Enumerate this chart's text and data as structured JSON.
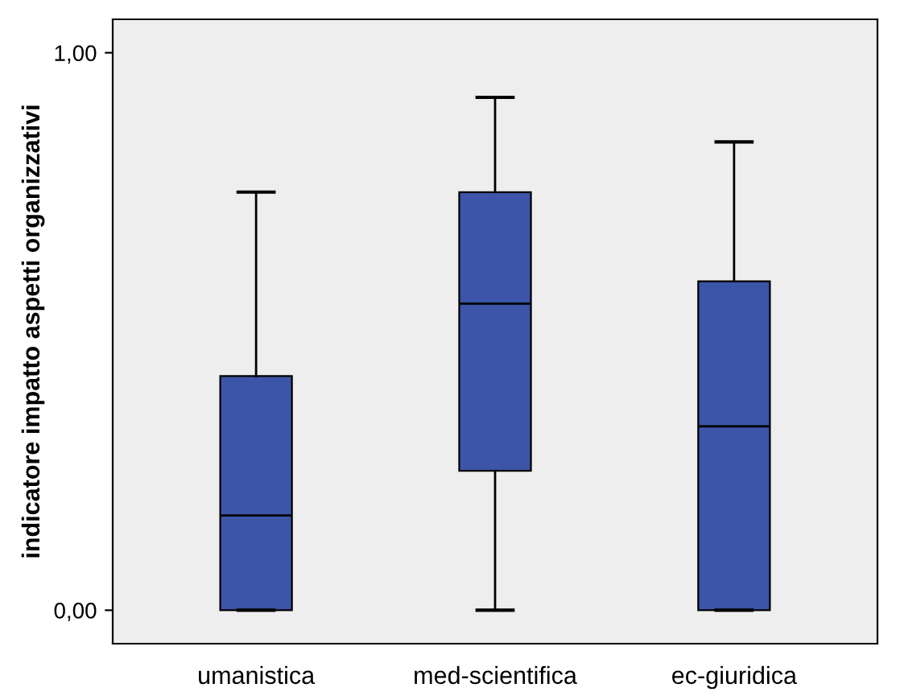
{
  "chart_data": {
    "type": "box",
    "ylabel": "indicatore impatto aspetti organizzativi",
    "categories": [
      "umanistica",
      "med-scientifica",
      "ec-giuridica"
    ],
    "color": "#3d55a8",
    "boxes": [
      {
        "low": 0,
        "q1": 0,
        "median": 0.17,
        "q3": 0.42,
        "high": 0.75
      },
      {
        "low": 0,
        "q1": 0.25,
        "median": 0.55,
        "q3": 0.75,
        "high": 0.92
      },
      {
        "low": 0,
        "q1": 0,
        "median": 0.33,
        "q3": 0.59,
        "high": 0.84
      }
    ],
    "ylim": [
      -0.06,
      1.06
    ],
    "yticks": [
      {
        "value": 0,
        "label": "0,00"
      },
      {
        "value": 1,
        "label": "1,00"
      }
    ],
    "grid": false
  }
}
